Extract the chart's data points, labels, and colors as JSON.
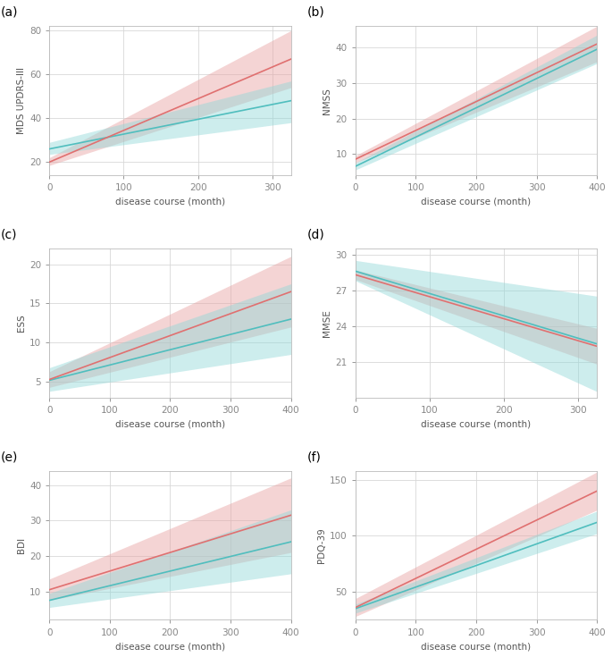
{
  "panels": [
    {
      "label": "(a)",
      "ylabel": "MDS UPDRS-III",
      "xlabel": "disease course (month)",
      "xlim": [
        0,
        325
      ],
      "ylim": [
        14,
        82
      ],
      "yticks": [
        20,
        40,
        60,
        80
      ],
      "xticks": [
        0,
        100,
        200,
        300
      ],
      "red_line": [
        [
          0,
          20
        ],
        [
          325,
          67
        ]
      ],
      "red_ci_upper": [
        [
          0,
          22
        ],
        [
          325,
          80
        ]
      ],
      "red_ci_lower": [
        [
          0,
          18.5
        ],
        [
          325,
          54
        ]
      ],
      "cyan_line": [
        [
          0,
          26
        ],
        [
          325,
          48
        ]
      ],
      "cyan_ci_upper": [
        [
          0,
          29
        ],
        [
          325,
          57
        ]
      ],
      "cyan_ci_lower": [
        [
          0,
          23.5
        ],
        [
          325,
          38
        ]
      ]
    },
    {
      "label": "(b)",
      "ylabel": "NMSS",
      "xlabel": "disease course (month)",
      "xlim": [
        0,
        400
      ],
      "ylim": [
        4,
        46
      ],
      "yticks": [
        10,
        20,
        30,
        40
      ],
      "xticks": [
        0,
        100,
        200,
        300,
        400
      ],
      "red_line": [
        [
          0,
          8.5
        ],
        [
          400,
          41
        ]
      ],
      "red_ci_upper": [
        [
          0,
          9.5
        ],
        [
          400,
          46
        ]
      ],
      "red_ci_lower": [
        [
          0,
          7.5
        ],
        [
          400,
          36
        ]
      ],
      "cyan_line": [
        [
          0,
          6.5
        ],
        [
          400,
          39.5
        ]
      ],
      "cyan_ci_upper": [
        [
          0,
          7.5
        ],
        [
          400,
          43.5
        ]
      ],
      "cyan_ci_lower": [
        [
          0,
          5.5
        ],
        [
          400,
          35.5
        ]
      ]
    },
    {
      "label": "(c)",
      "ylabel": "ESS",
      "xlabel": "disease course (month)",
      "xlim": [
        0,
        400
      ],
      "ylim": [
        3,
        22
      ],
      "yticks": [
        5,
        10,
        15,
        20
      ],
      "xticks": [
        0,
        100,
        200,
        300,
        400
      ],
      "red_line": [
        [
          0,
          5.3
        ],
        [
          400,
          16.5
        ]
      ],
      "red_ci_upper": [
        [
          0,
          6.3
        ],
        [
          400,
          21.0
        ]
      ],
      "red_ci_lower": [
        [
          0,
          4.3
        ],
        [
          400,
          12.0
        ]
      ],
      "cyan_line": [
        [
          0,
          5.2
        ],
        [
          400,
          13.0
        ]
      ],
      "cyan_ci_upper": [
        [
          0,
          6.8
        ],
        [
          400,
          17.5
        ]
      ],
      "cyan_ci_lower": [
        [
          0,
          3.8
        ],
        [
          400,
          8.5
        ]
      ]
    },
    {
      "label": "(d)",
      "ylabel": "MMSE",
      "xlabel": "disease course (month)",
      "xlim": [
        0,
        325
      ],
      "ylim": [
        18,
        30.5
      ],
      "yticks": [
        21,
        24,
        27,
        30
      ],
      "xticks": [
        0,
        100,
        200,
        300
      ],
      "red_line": [
        [
          0,
          28.3
        ],
        [
          325,
          22.3
        ]
      ],
      "red_ci_upper": [
        [
          0,
          28.7
        ],
        [
          325,
          23.8
        ]
      ],
      "red_ci_lower": [
        [
          0,
          27.9
        ],
        [
          325,
          20.8
        ]
      ],
      "cyan_line": [
        [
          0,
          28.6
        ],
        [
          325,
          22.5
        ]
      ],
      "cyan_ci_upper": [
        [
          0,
          29.5
        ],
        [
          325,
          26.5
        ]
      ],
      "cyan_ci_lower": [
        [
          0,
          27.8
        ],
        [
          325,
          18.5
        ]
      ]
    },
    {
      "label": "(e)",
      "ylabel": "BDI",
      "xlabel": "disease course (month)",
      "xlim": [
        0,
        400
      ],
      "ylim": [
        2,
        44
      ],
      "yticks": [
        10,
        20,
        30,
        40
      ],
      "xticks": [
        0,
        100,
        200,
        300,
        400
      ],
      "red_line": [
        [
          0,
          10.5
        ],
        [
          400,
          31.5
        ]
      ],
      "red_ci_upper": [
        [
          0,
          13.5
        ],
        [
          400,
          42.0
        ]
      ],
      "red_ci_lower": [
        [
          0,
          7.5
        ],
        [
          400,
          21.0
        ]
      ],
      "cyan_line": [
        [
          0,
          7.5
        ],
        [
          400,
          24.0
        ]
      ],
      "cyan_ci_upper": [
        [
          0,
          9.5
        ],
        [
          400,
          33.0
        ]
      ],
      "cyan_ci_lower": [
        [
          0,
          5.5
        ],
        [
          400,
          15.0
        ]
      ]
    },
    {
      "label": "(f)",
      "ylabel": "PDQ-39",
      "xlabel": "disease course (month)",
      "xlim": [
        0,
        400
      ],
      "ylim": [
        25,
        158
      ],
      "yticks": [
        50,
        100,
        150
      ],
      "xticks": [
        0,
        100,
        200,
        300,
        400
      ],
      "red_line": [
        [
          0,
          36
        ],
        [
          400,
          140
        ]
      ],
      "red_ci_upper": [
        [
          0,
          44
        ],
        [
          400,
          157
        ]
      ],
      "red_ci_lower": [
        [
          0,
          28
        ],
        [
          400,
          123
        ]
      ],
      "cyan_line": [
        [
          0,
          35
        ],
        [
          400,
          112
        ]
      ],
      "cyan_ci_upper": [
        [
          0,
          39
        ],
        [
          400,
          122
        ]
      ],
      "cyan_ci_lower": [
        [
          0,
          31
        ],
        [
          400,
          102
        ]
      ]
    }
  ],
  "red_color": "#E07070",
  "cyan_color": "#50BEBE",
  "red_fill": "#E8A0A0",
  "cyan_fill": "#90D8D8",
  "plot_bg": "#FFFFFF",
  "fig_bg": "#FFFFFF",
  "grid_color": "#D8D8D8",
  "label_color": "#555555",
  "tick_color": "#888888",
  "panel_label_fontsize": 10,
  "axis_label_fontsize": 7.5,
  "tick_fontsize": 7.5,
  "line_width": 1.2,
  "red_fill_alpha": 0.45,
  "cyan_fill_alpha": 0.45
}
